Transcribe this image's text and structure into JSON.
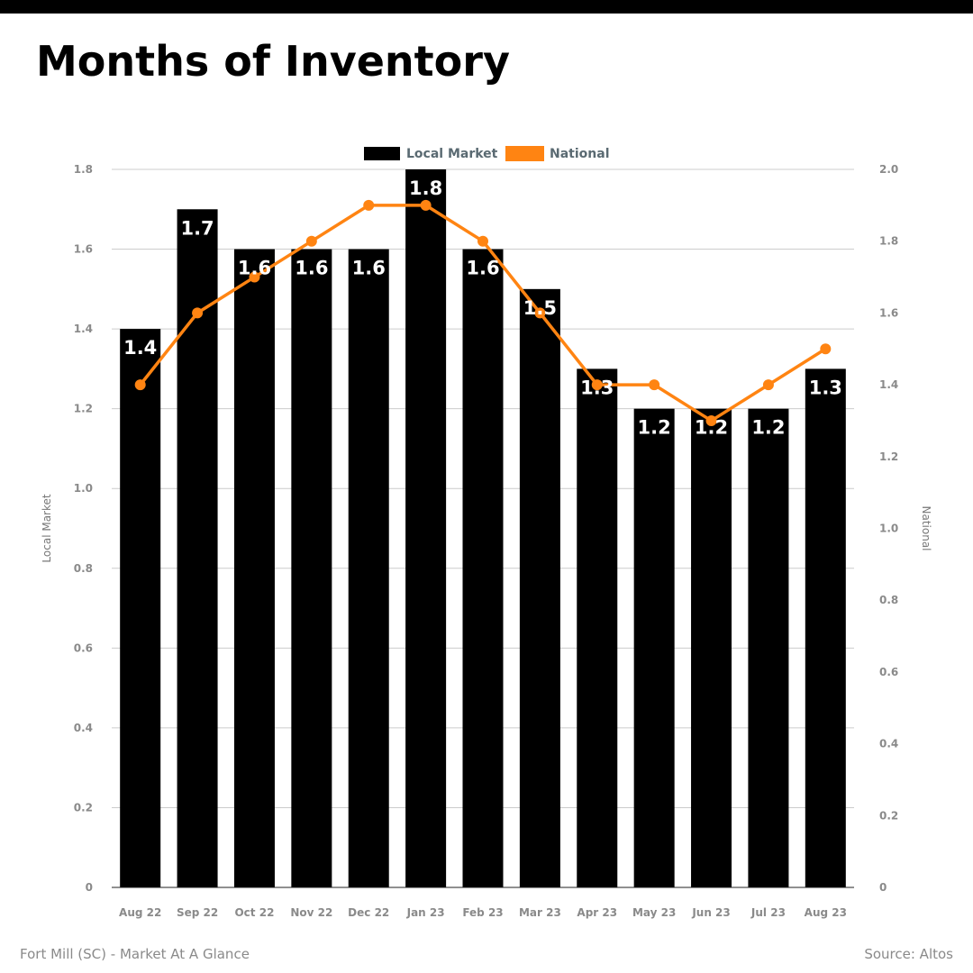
{
  "title": "Months of Inventory",
  "footer": {
    "left": "Fort Mill (SC) - Market At A Glance",
    "right": "Source: Altos"
  },
  "colors": {
    "local": "#000000",
    "national": "#ff8412",
    "grid": "#cccccc",
    "tick": "#8a8a8a"
  },
  "chart_data": {
    "type": "bar",
    "title": "Months of Inventory",
    "categories": [
      "Aug 22",
      "Sep 22",
      "Oct 22",
      "Nov 22",
      "Dec 22",
      "Jan 23",
      "Feb 23",
      "Mar 23",
      "Apr 23",
      "May 23",
      "Jun 23",
      "Jul 23",
      "Aug 23"
    ],
    "series": [
      {
        "name": "Local Market",
        "type": "bar",
        "axis": "left",
        "values": [
          1.4,
          1.7,
          1.6,
          1.6,
          1.6,
          1.8,
          1.6,
          1.5,
          1.3,
          1.2,
          1.2,
          1.2,
          1.3
        ],
        "labels": [
          "1.4",
          "1.7",
          "1.6",
          "1.6",
          "1.6",
          "1.8",
          "1.6",
          "1.5",
          "1.3",
          "1.2",
          "1.2",
          "1.2",
          "1.3"
        ]
      },
      {
        "name": "National",
        "type": "line",
        "axis": "right",
        "values": [
          1.4,
          1.6,
          1.7,
          1.8,
          1.9,
          1.9,
          1.8,
          1.6,
          1.4,
          1.4,
          1.3,
          1.4,
          1.5
        ]
      }
    ],
    "ylabel": "Local Market",
    "y2label": "National",
    "ylim": [
      0,
      1.8
    ],
    "y2lim": [
      0,
      2.0
    ],
    "yticks": [
      "0",
      "0.2",
      "0.4",
      "0.6",
      "0.8",
      "1.0",
      "1.2",
      "1.4",
      "1.6",
      "1.8"
    ],
    "y2ticks": [
      "0",
      "0.2",
      "0.4",
      "0.6",
      "0.8",
      "1.0",
      "1.2",
      "1.4",
      "1.6",
      "1.8",
      "2.0"
    ],
    "grid": true,
    "legend": "top-center"
  }
}
